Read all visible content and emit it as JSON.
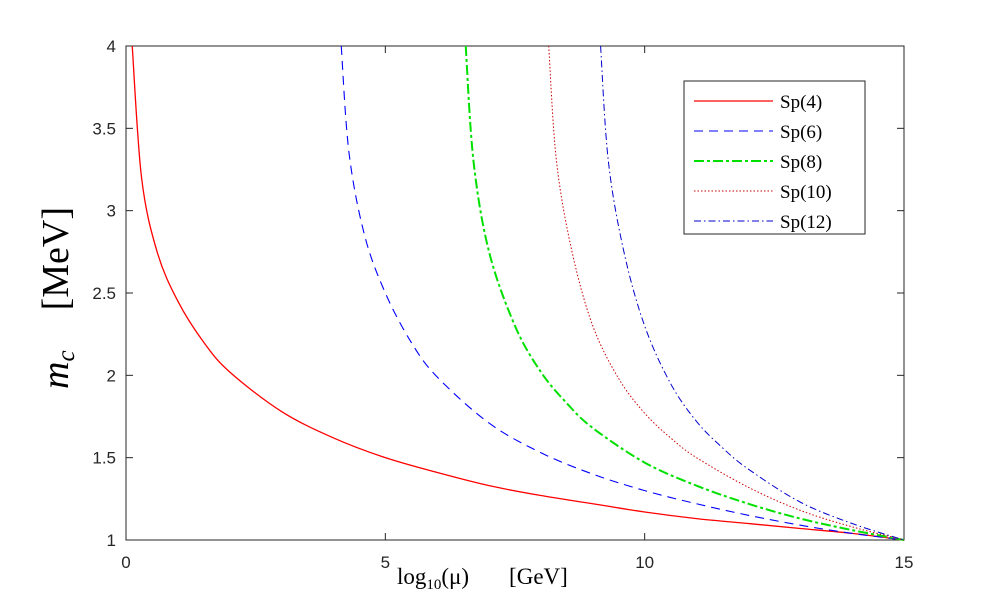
{
  "chart_data": {
    "type": "line",
    "title": "",
    "xlabel": {
      "main": "log",
      "sub": "10",
      "arg": "(μ)",
      "unit": "[GeV]"
    },
    "ylabel": {
      "var": "m",
      "sub": "c",
      "unit": "[MeV]"
    },
    "xlim": [
      0,
      15
    ],
    "ylim": [
      1,
      4
    ],
    "xticks": [
      0,
      5,
      10,
      15
    ],
    "xtick_labels": [
      "0",
      "5",
      "10",
      "15"
    ],
    "yticks": [
      1,
      1.5,
      2,
      2.5,
      3,
      3.5,
      4
    ],
    "ytick_labels": [
      "1",
      "1.5",
      "2",
      "2.5",
      "3",
      "3.5",
      "4"
    ],
    "grid": false,
    "legend_position": "top-right",
    "series": [
      {
        "name": "Sp(4)",
        "color": "#ff0000",
        "dash": "solid",
        "width": 1.3,
        "x": [
          0.12,
          0.3,
          0.6,
          1.0,
          1.5,
          2.0,
          3.0,
          4.0,
          5.0,
          6.0,
          7.0,
          8.0,
          9.0,
          10.0,
          11.0,
          12.0,
          13.0,
          14.0,
          15.0
        ],
        "y": [
          4.0,
          3.2,
          2.75,
          2.45,
          2.2,
          2.02,
          1.78,
          1.62,
          1.5,
          1.41,
          1.33,
          1.27,
          1.22,
          1.17,
          1.13,
          1.1,
          1.07,
          1.04,
          1.0
        ]
      },
      {
        "name": "Sp(6)",
        "color": "#0000ff",
        "dash": "9,6",
        "width": 1.1,
        "x": [
          4.15,
          4.3,
          4.6,
          5.0,
          5.5,
          6.0,
          7.0,
          8.0,
          9.0,
          10.0,
          11.0,
          12.0,
          13.0,
          14.0,
          15.0
        ],
        "y": [
          4.0,
          3.35,
          2.85,
          2.5,
          2.2,
          1.99,
          1.71,
          1.53,
          1.4,
          1.3,
          1.22,
          1.15,
          1.09,
          1.04,
          1.0
        ]
      },
      {
        "name": "Sp(8)",
        "color": "#00e000",
        "dash": "10,3,3,3",
        "width": 2.0,
        "x": [
          6.55,
          6.7,
          7.0,
          7.5,
          8.0,
          8.5,
          9.0,
          10.0,
          11.0,
          12.0,
          13.0,
          14.0,
          15.0
        ],
        "y": [
          4.0,
          3.3,
          2.75,
          2.3,
          2.02,
          1.83,
          1.68,
          1.47,
          1.33,
          1.22,
          1.13,
          1.06,
          1.0
        ]
      },
      {
        "name": "Sp(10)",
        "color": "#cc0000",
        "dash": "1.5,2",
        "width": 1.0,
        "x": [
          8.15,
          8.3,
          8.6,
          9.0,
          9.5,
          10.0,
          10.5,
          11.0,
          12.0,
          13.0,
          14.0,
          15.0
        ],
        "y": [
          4.0,
          3.3,
          2.75,
          2.3,
          1.98,
          1.77,
          1.62,
          1.5,
          1.32,
          1.18,
          1.08,
          1.0
        ]
      },
      {
        "name": "Sp(12)",
        "color": "#0000cc",
        "dash": "7,3,1.5,3",
        "width": 1.0,
        "x": [
          9.15,
          9.3,
          9.6,
          10.0,
          10.5,
          11.0,
          11.5,
          12.0,
          13.0,
          14.0,
          15.0
        ],
        "y": [
          4.0,
          3.3,
          2.75,
          2.3,
          1.95,
          1.72,
          1.56,
          1.43,
          1.23,
          1.1,
          1.0
        ]
      }
    ]
  }
}
